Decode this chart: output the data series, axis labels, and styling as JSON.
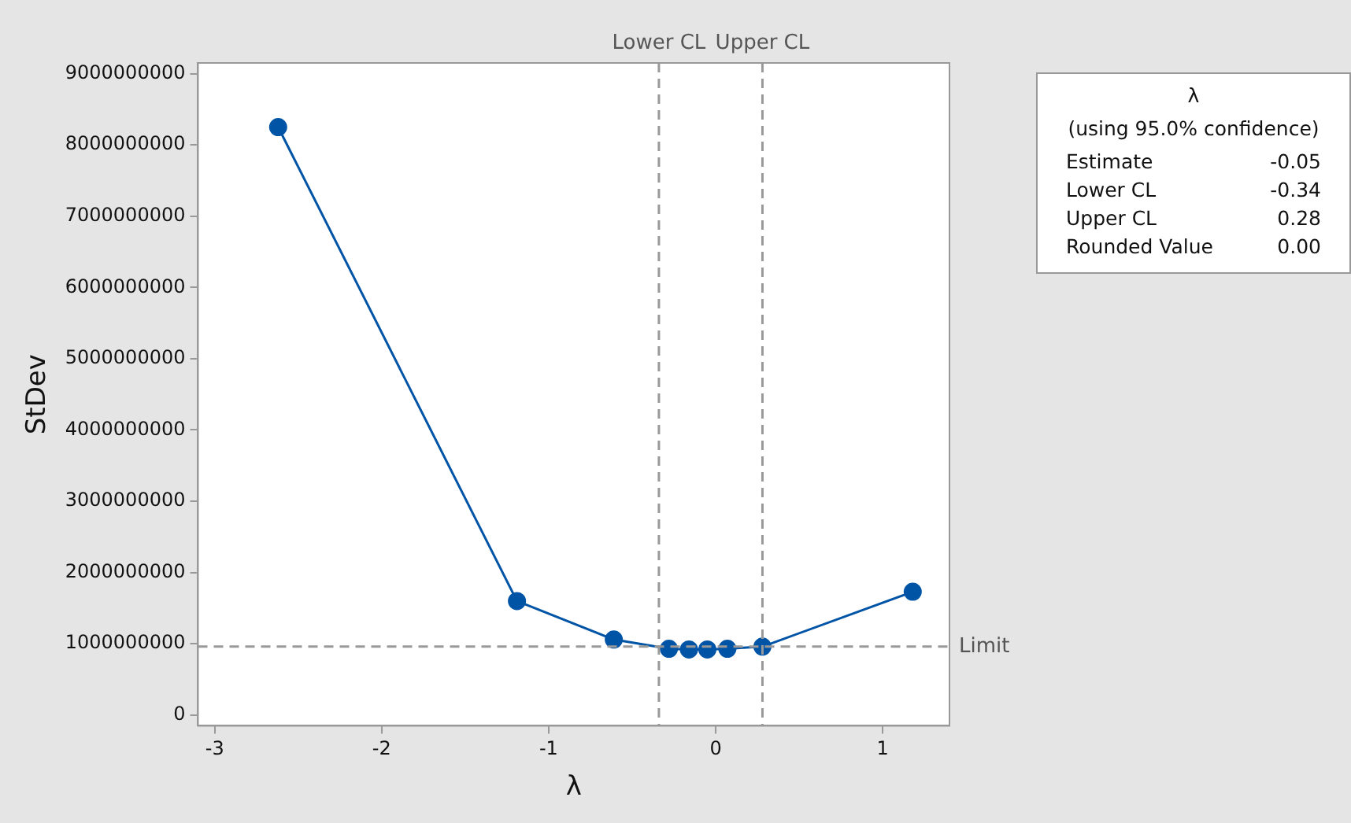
{
  "chart_data": {
    "type": "line",
    "xlabel": "λ",
    "ylabel": "StDev",
    "x": [
      -2.62,
      -1.19,
      -0.61,
      -0.28,
      -0.16,
      -0.05,
      0.07,
      0.28,
      1.18
    ],
    "series": [
      {
        "color": "#0054a6",
        "values": [
          8250000000,
          1600000000,
          1060000000,
          930000000,
          920000000,
          920000000,
          930000000,
          960000000,
          1730000000
        ]
      }
    ],
    "xlim": [
      -3.1,
      1.4
    ],
    "xticks": [
      -3,
      -2,
      -1,
      0,
      1
    ],
    "ylim": [
      -150000000,
      9150000000
    ],
    "yticks": [
      0,
      1000000000,
      2000000000,
      3000000000,
      4000000000,
      5000000000,
      6000000000,
      7000000000,
      8000000000,
      9000000000
    ],
    "ref_lines": [
      {
        "axis": "x",
        "value": -0.34,
        "label": "Lower CL",
        "color": "#999999",
        "line_style": "dashed"
      },
      {
        "axis": "x",
        "value": 0.28,
        "label": "Upper CL",
        "color": "#999999",
        "line_style": "dashed"
      },
      {
        "axis": "y",
        "value": 960000000,
        "label": "Limit",
        "color": "#999999",
        "line_style": "dashed"
      }
    ],
    "annotations": [
      "λ",
      "(using 95.0% confidence)",
      "Estimate",
      "-0.05",
      "Lower CL",
      "-0.34",
      "Upper CL",
      "0.28",
      "Rounded Value",
      "0.00"
    ],
    "grid": false,
    "legend": false,
    "marker": "circle",
    "line_style": "solid"
  }
}
